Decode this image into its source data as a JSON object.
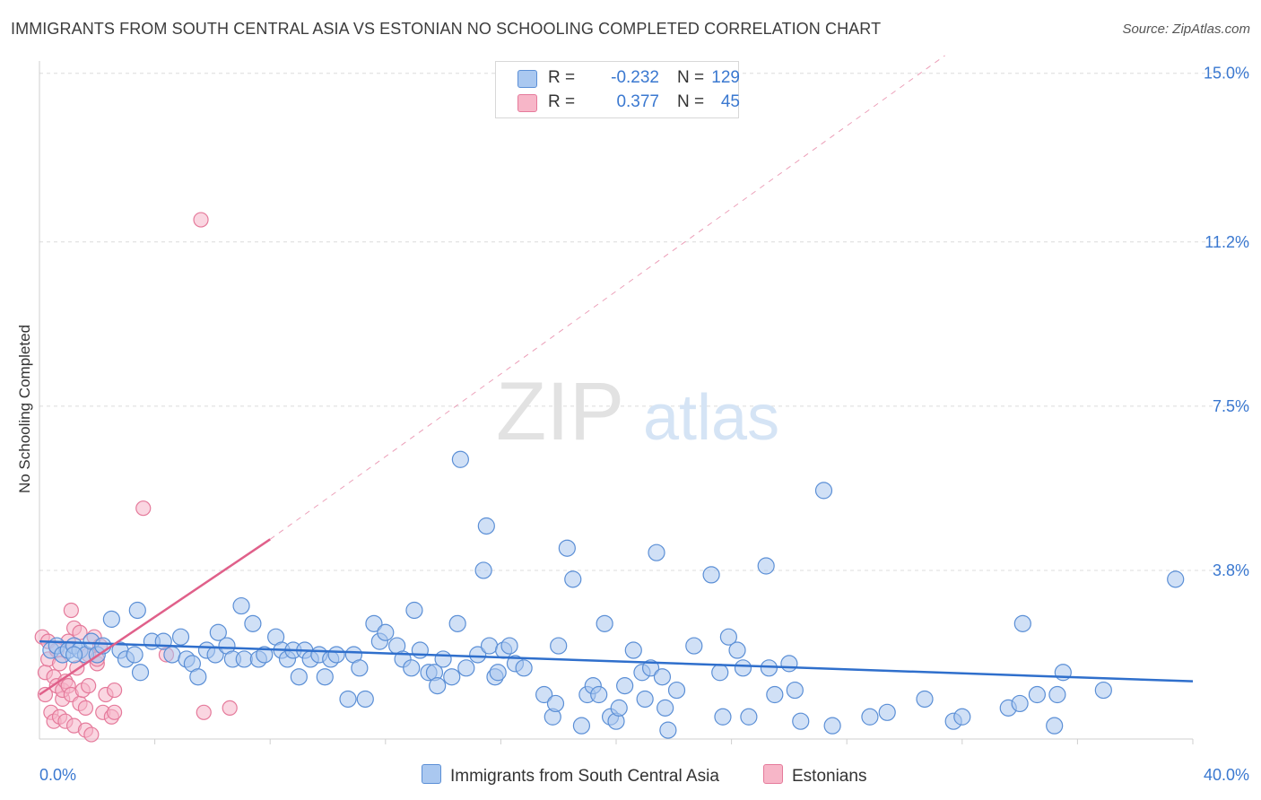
{
  "header": {
    "title": "IMMIGRANTS FROM SOUTH CENTRAL ASIA VS ESTONIAN NO SCHOOLING COMPLETED CORRELATION CHART",
    "source": "Source: ZipAtlas.com"
  },
  "watermark": {
    "zip": "ZIP",
    "atlas": "atlas"
  },
  "legend": {
    "rows": [
      {
        "r_label": "R =",
        "r_value": "-0.232",
        "n_label": "N =",
        "n_value": "129",
        "color": "#aac8f0"
      },
      {
        "r_label": "R =",
        "r_value": "0.377",
        "n_label": "N =",
        "n_value": "45",
        "color": "#f7b6c8"
      }
    ]
  },
  "bottom_legend": [
    {
      "label": "Immigrants from South Central Asia",
      "color": "#aac8f0"
    },
    {
      "label": "Estonians",
      "color": "#f7b6c8"
    }
  ],
  "colors": {
    "blue_fill": "#a9c7ef",
    "blue_stroke": "#5b8fd6",
    "blue_line": "#2f6fcc",
    "pink_fill": "#f5b5c8",
    "pink_stroke": "#e57a9b",
    "pink_line": "#e0608a",
    "tick_label": "#3a78d0",
    "grid": "#dcdcdc"
  },
  "chart_data": {
    "type": "scatter",
    "title": "IMMIGRANTS FROM SOUTH CENTRAL ASIA VS ESTONIAN NO SCHOOLING COMPLETED CORRELATION CHART",
    "xlabel": "",
    "ylabel": "No Schooling Completed",
    "xlim": [
      0,
      40
    ],
    "ylim": [
      0,
      15.5
    ],
    "x_tick_labels": [
      "0.0%",
      "40.0%"
    ],
    "y_ticks": [
      3.8,
      7.5,
      11.2,
      15.0
    ],
    "y_tick_labels": [
      "3.8%",
      "7.5%",
      "11.2%",
      "15.0%"
    ],
    "grid": true,
    "legend_position": "top-center",
    "series": [
      {
        "name": "Immigrants from South Central Asia",
        "trend": {
          "x": [
            0,
            40
          ],
          "y": [
            2.2,
            1.3
          ],
          "style": "solid"
        },
        "points": [
          [
            0.4,
            2.0
          ],
          [
            0.6,
            2.1
          ],
          [
            0.8,
            1.9
          ],
          [
            1.0,
            2.0
          ],
          [
            1.2,
            2.1
          ],
          [
            1.4,
            2.0
          ],
          [
            1.6,
            1.9
          ],
          [
            1.8,
            2.2
          ],
          [
            2.0,
            1.9
          ],
          [
            2.2,
            2.1
          ],
          [
            2.5,
            2.7
          ],
          [
            2.8,
            2.0
          ],
          [
            3.0,
            1.8
          ],
          [
            3.3,
            1.9
          ],
          [
            3.5,
            1.5
          ],
          [
            3.4,
            2.9
          ],
          [
            3.9,
            2.2
          ],
          [
            4.3,
            2.2
          ],
          [
            4.6,
            1.9
          ],
          [
            4.9,
            2.3
          ],
          [
            5.1,
            1.8
          ],
          [
            5.3,
            1.7
          ],
          [
            5.5,
            1.4
          ],
          [
            5.8,
            2.0
          ],
          [
            6.1,
            1.9
          ],
          [
            6.2,
            2.4
          ],
          [
            6.5,
            2.1
          ],
          [
            6.7,
            1.8
          ],
          [
            7.0,
            3.0
          ],
          [
            7.1,
            1.8
          ],
          [
            7.4,
            2.6
          ],
          [
            7.6,
            1.8
          ],
          [
            7.8,
            1.9
          ],
          [
            8.2,
            2.3
          ],
          [
            8.4,
            2.0
          ],
          [
            8.6,
            1.8
          ],
          [
            8.8,
            2.0
          ],
          [
            9.0,
            1.4
          ],
          [
            9.2,
            2.0
          ],
          [
            9.4,
            1.8
          ],
          [
            9.7,
            1.9
          ],
          [
            9.9,
            1.4
          ],
          [
            10.1,
            1.8
          ],
          [
            10.3,
            1.9
          ],
          [
            10.7,
            0.9
          ],
          [
            10.9,
            1.9
          ],
          [
            11.1,
            1.6
          ],
          [
            11.3,
            0.9
          ],
          [
            11.6,
            2.6
          ],
          [
            11.8,
            2.2
          ],
          [
            12.0,
            2.4
          ],
          [
            12.4,
            2.1
          ],
          [
            12.6,
            1.8
          ],
          [
            12.9,
            1.6
          ],
          [
            13.0,
            2.9
          ],
          [
            13.2,
            2.0
          ],
          [
            13.5,
            1.5
          ],
          [
            13.7,
            1.5
          ],
          [
            13.8,
            1.2
          ],
          [
            14.0,
            1.8
          ],
          [
            14.3,
            1.4
          ],
          [
            14.5,
            2.6
          ],
          [
            14.6,
            6.3
          ],
          [
            14.8,
            1.6
          ],
          [
            15.2,
            1.9
          ],
          [
            15.4,
            3.8
          ],
          [
            15.5,
            4.8
          ],
          [
            15.6,
            2.1
          ],
          [
            15.8,
            1.4
          ],
          [
            15.9,
            1.5
          ],
          [
            16.1,
            2.0
          ],
          [
            16.3,
            2.1
          ],
          [
            16.5,
            1.7
          ],
          [
            16.8,
            1.6
          ],
          [
            17.5,
            1.0
          ],
          [
            17.8,
            0.5
          ],
          [
            17.9,
            0.8
          ],
          [
            18.0,
            2.1
          ],
          [
            18.3,
            4.3
          ],
          [
            18.5,
            3.6
          ],
          [
            18.8,
            0.3
          ],
          [
            19.0,
            1.0
          ],
          [
            19.2,
            1.2
          ],
          [
            19.4,
            1.0
          ],
          [
            19.6,
            2.6
          ],
          [
            19.8,
            0.5
          ],
          [
            20.0,
            0.4
          ],
          [
            20.1,
            0.7
          ],
          [
            20.3,
            1.2
          ],
          [
            20.6,
            2.0
          ],
          [
            20.9,
            1.5
          ],
          [
            21.0,
            0.9
          ],
          [
            21.2,
            1.6
          ],
          [
            21.4,
            4.2
          ],
          [
            21.6,
            1.4
          ],
          [
            21.7,
            0.7
          ],
          [
            21.8,
            0.2
          ],
          [
            22.1,
            1.1
          ],
          [
            22.7,
            2.1
          ],
          [
            23.3,
            3.7
          ],
          [
            23.6,
            1.5
          ],
          [
            23.7,
            0.5
          ],
          [
            23.9,
            2.3
          ],
          [
            24.2,
            2.0
          ],
          [
            24.4,
            1.6
          ],
          [
            24.6,
            0.5
          ],
          [
            25.2,
            3.9
          ],
          [
            25.3,
            1.6
          ],
          [
            25.5,
            1.0
          ],
          [
            26.0,
            1.7
          ],
          [
            26.2,
            1.1
          ],
          [
            26.4,
            0.4
          ],
          [
            27.2,
            5.6
          ],
          [
            27.5,
            0.3
          ],
          [
            28.8,
            0.5
          ],
          [
            29.4,
            0.6
          ],
          [
            30.7,
            0.9
          ],
          [
            31.7,
            0.4
          ],
          [
            32.0,
            0.5
          ],
          [
            33.6,
            0.7
          ],
          [
            34.0,
            0.8
          ],
          [
            34.1,
            2.6
          ],
          [
            34.6,
            1.0
          ],
          [
            35.2,
            0.3
          ],
          [
            35.3,
            1.0
          ],
          [
            35.5,
            1.5
          ],
          [
            36.9,
            1.1
          ],
          [
            39.4,
            3.6
          ],
          [
            1.2,
            1.9
          ]
        ]
      },
      {
        "name": "Estonians",
        "trend": {
          "x": [
            0,
            8
          ],
          "y": [
            1.0,
            4.5
          ],
          "style": "solid",
          "extended": {
            "x": [
              8,
              31.4
            ],
            "y": [
              4.5,
              15.4
            ],
            "style": "dashed"
          }
        },
        "points": [
          [
            0.1,
            2.3
          ],
          [
            0.2,
            1.5
          ],
          [
            0.2,
            1.0
          ],
          [
            0.3,
            1.8
          ],
          [
            0.3,
            2.2
          ],
          [
            0.4,
            0.6
          ],
          [
            0.5,
            1.4
          ],
          [
            0.5,
            0.4
          ],
          [
            0.6,
            1.2
          ],
          [
            0.6,
            2.0
          ],
          [
            0.7,
            0.5
          ],
          [
            0.7,
            1.7
          ],
          [
            0.8,
            0.9
          ],
          [
            0.8,
            1.1
          ],
          [
            0.9,
            1.3
          ],
          [
            0.9,
            0.4
          ],
          [
            1.0,
            2.2
          ],
          [
            1.0,
            1.2
          ],
          [
            1.1,
            2.9
          ],
          [
            1.1,
            1.0
          ],
          [
            1.2,
            2.5
          ],
          [
            1.2,
            0.3
          ],
          [
            1.3,
            1.6
          ],
          [
            1.4,
            0.8
          ],
          [
            1.4,
            2.4
          ],
          [
            1.5,
            1.1
          ],
          [
            1.6,
            0.2
          ],
          [
            1.6,
            0.7
          ],
          [
            1.7,
            1.9
          ],
          [
            1.7,
            1.2
          ],
          [
            1.8,
            0.1
          ],
          [
            1.9,
            2.3
          ],
          [
            2.0,
            1.7
          ],
          [
            2.1,
            2.1
          ],
          [
            2.2,
            0.6
          ],
          [
            2.3,
            1.0
          ],
          [
            2.5,
            0.5
          ],
          [
            2.6,
            0.6
          ],
          [
            2.6,
            1.1
          ],
          [
            3.6,
            5.2
          ],
          [
            4.4,
            1.9
          ],
          [
            5.6,
            11.7
          ],
          [
            5.7,
            0.6
          ],
          [
            6.6,
            0.7
          ],
          [
            2.0,
            1.8
          ]
        ]
      }
    ]
  }
}
